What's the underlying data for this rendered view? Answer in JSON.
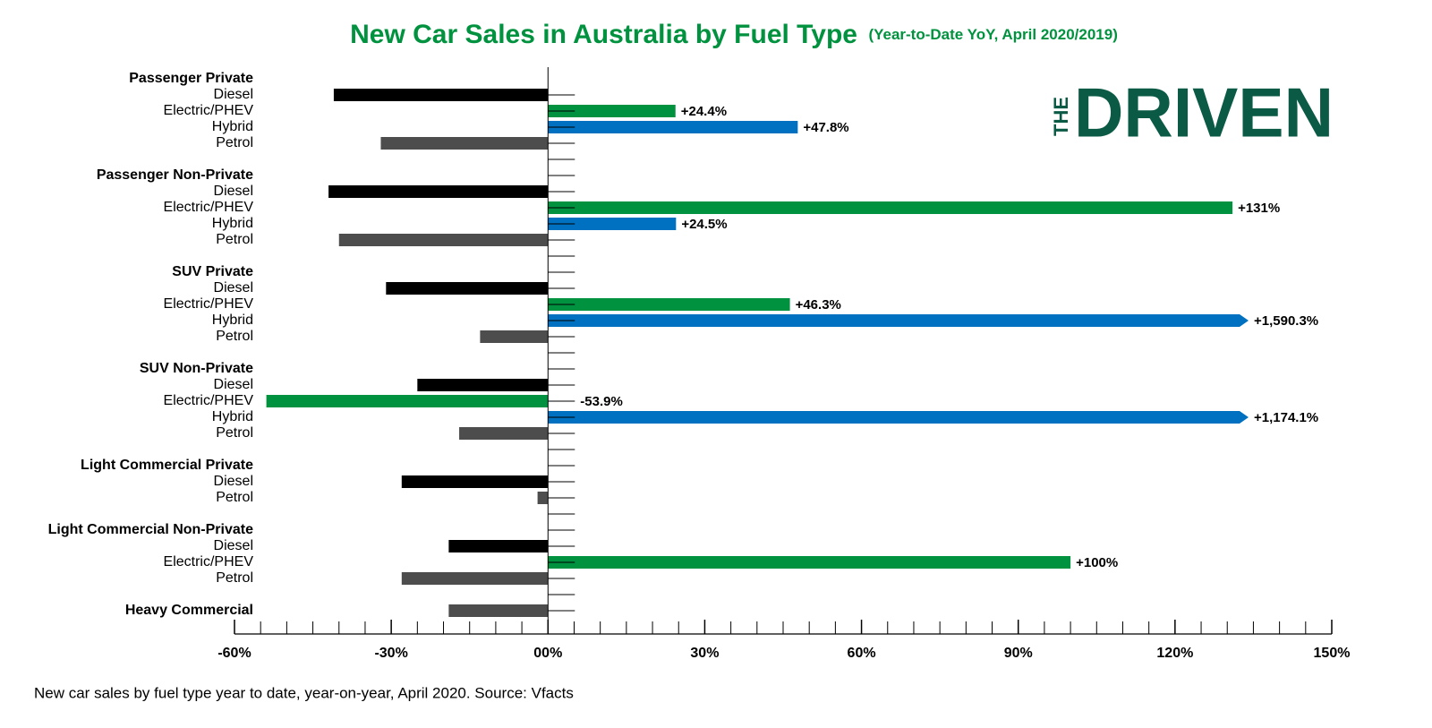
{
  "chart_data": {
    "type": "grouped-bar-horizontal",
    "title": "New Car Sales in Australia by Fuel Type",
    "subtitle": "(Year-to-Date YoY, April 2020/2019)",
    "footnote": "New car sales by fuel type year to date, year-on-year, April 2020. Source: Vfacts",
    "logo": {
      "small": "THE",
      "large": "DRIVEN"
    },
    "fuel_colors": {
      "Diesel": "#000000",
      "Electric/PHEV": "#00923f",
      "Hybrid": "#0070c0",
      "Petrol": "#4d4d4d"
    },
    "groups": [
      {
        "name": "Passenger Private",
        "categories": [
          "Diesel",
          "Electric/PHEV",
          "Hybrid",
          "Petrol"
        ],
        "values": [
          -41,
          24.4,
          47.8,
          -32
        ],
        "value_labels": [
          null,
          "+24.4%",
          "+47.8%",
          null
        ]
      },
      {
        "name": "Passenger Non-Private",
        "categories": [
          "Diesel",
          "Electric/PHEV",
          "Hybrid",
          "Petrol"
        ],
        "values": [
          -42,
          131,
          24.5,
          -40
        ],
        "value_labels": [
          null,
          "+131%",
          "+24.5%",
          null
        ]
      },
      {
        "name": "SUV Private",
        "categories": [
          "Diesel",
          "Electric/PHEV",
          "Hybrid",
          "Petrol"
        ],
        "values": [
          -31,
          46.3,
          1590.3,
          -13
        ],
        "value_labels": [
          null,
          "+46.3%",
          "+1,590.3%",
          null
        ]
      },
      {
        "name": "SUV Non-Private",
        "categories": [
          "Diesel",
          "Electric/PHEV",
          "Hybrid",
          "Petrol"
        ],
        "values": [
          -25,
          -53.9,
          1174.1,
          -17
        ],
        "value_labels": [
          null,
          "-53.9%",
          "+1,174.1%",
          null
        ]
      },
      {
        "name": "Light Commercial Private",
        "categories": [
          "Diesel",
          "Petrol"
        ],
        "values": [
          -28,
          -2
        ],
        "value_labels": [
          null,
          null
        ]
      },
      {
        "name": "Light Commercial Non-Private",
        "categories": [
          "Diesel",
          "Electric/PHEV",
          "Petrol"
        ],
        "values": [
          -19,
          100,
          -28
        ],
        "value_labels": [
          null,
          "+100%",
          null
        ]
      },
      {
        "name": "Heavy Commercial",
        "categories": [
          null
        ],
        "values": [
          -19
        ],
        "value_labels": [
          null
        ]
      }
    ],
    "xlim": [
      -60,
      150
    ],
    "xticks": [
      {
        "value": -60,
        "label": "-60%"
      },
      {
        "value": -30,
        "label": "-30%"
      },
      {
        "value": 0,
        "label": "00%"
      },
      {
        "value": 30,
        "label": "30%"
      },
      {
        "value": 60,
        "label": "60%"
      },
      {
        "value": 90,
        "label": "90%"
      },
      {
        "value": 120,
        "label": "120%"
      },
      {
        "value": 150,
        "label": "150%"
      }
    ],
    "minor_xticks": [
      -55,
      -50,
      -45,
      -40,
      -35,
      -25,
      -20,
      -15,
      -10,
      -5,
      5,
      10,
      15,
      20,
      25,
      35,
      40,
      45,
      50,
      55,
      65,
      70,
      75,
      80,
      85,
      95,
      100,
      105,
      110,
      115,
      125,
      130,
      135,
      140,
      145
    ]
  }
}
